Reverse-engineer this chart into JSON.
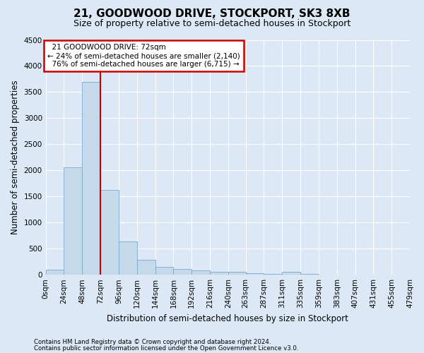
{
  "title": "21, GOODWOOD DRIVE, STOCKPORT, SK3 8XB",
  "subtitle": "Size of property relative to semi-detached houses in Stockport",
  "xlabel": "Distribution of semi-detached houses by size in Stockport",
  "ylabel": "Number of semi-detached properties",
  "footnote1": "Contains HM Land Registry data © Crown copyright and database right 2024.",
  "footnote2": "Contains public sector information licensed under the Open Government Licence v3.0.",
  "bin_edges": [
    0,
    24,
    48,
    72,
    96,
    120,
    144,
    168,
    192,
    216,
    240,
    263,
    287,
    311,
    335,
    359,
    383,
    407,
    431,
    455,
    479
  ],
  "bin_labels": [
    "0sqm",
    "24sqm",
    "48sqm",
    "72sqm",
    "96sqm",
    "120sqm",
    "144sqm",
    "168sqm",
    "192sqm",
    "216sqm",
    "240sqm",
    "263sqm",
    "287sqm",
    "311sqm",
    "335sqm",
    "359sqm",
    "383sqm",
    "407sqm",
    "431sqm",
    "455sqm",
    "479sqm"
  ],
  "bar_values": [
    100,
    2060,
    3700,
    1620,
    640,
    290,
    150,
    110,
    85,
    60,
    50,
    30,
    20,
    55,
    10,
    5,
    5,
    5,
    5,
    5
  ],
  "bar_color": "#c5d9ea",
  "bar_edge_color": "#7aaac8",
  "property_size": 72,
  "property_label": "21 GOODWOOD DRIVE: 72sqm",
  "pct_smaller": 24,
  "pct_larger": 76,
  "count_smaller": 2140,
  "count_larger": 6715,
  "marker_color": "#cc0000",
  "annotation_box_edge_color": "#cc0000",
  "ylim": [
    0,
    4500
  ],
  "yticks": [
    0,
    500,
    1000,
    1500,
    2000,
    2500,
    3000,
    3500,
    4000,
    4500
  ],
  "background_color": "#dce8f5",
  "plot_bg_color": "#dce8f5",
  "grid_color": "#ffffff",
  "title_fontsize": 11,
  "subtitle_fontsize": 9,
  "axis_label_fontsize": 8.5,
  "tick_fontsize": 7.5,
  "annotation_fontsize": 7.5
}
